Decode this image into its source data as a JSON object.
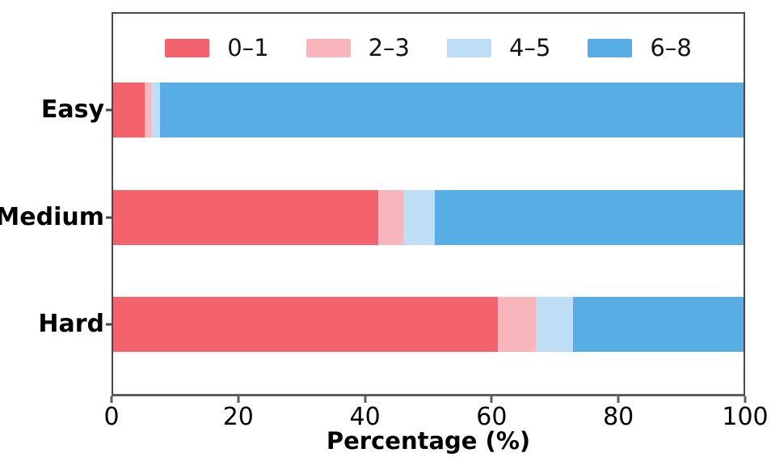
{
  "chart_data": {
    "type": "bar",
    "orientation": "horizontal",
    "stacked": true,
    "title": "",
    "xlabel": "Percentage (%)",
    "ylabel": "",
    "xlim": [
      0,
      100
    ],
    "xticks": [
      0,
      20,
      40,
      60,
      80,
      100
    ],
    "grid": false,
    "legend_position": "top-inside",
    "categories": [
      "Easy",
      "Medium",
      "Hard"
    ],
    "series": [
      {
        "name": "0–1",
        "color": "#F4626D",
        "values": [
          5,
          42,
          61
        ]
      },
      {
        "name": "2–3",
        "color": "#F8B6BC",
        "values": [
          1,
          4,
          6
        ]
      },
      {
        "name": "4–5",
        "color": "#BEDEF6",
        "values": [
          1.5,
          5,
          6
        ]
      },
      {
        "name": "6–8",
        "color": "#57ADE4",
        "values": [
          92.5,
          49,
          27
        ]
      }
    ]
  },
  "colors": {
    "spine": "#474747",
    "axis_bottom": "#5e5e5e",
    "text": "#000000"
  }
}
